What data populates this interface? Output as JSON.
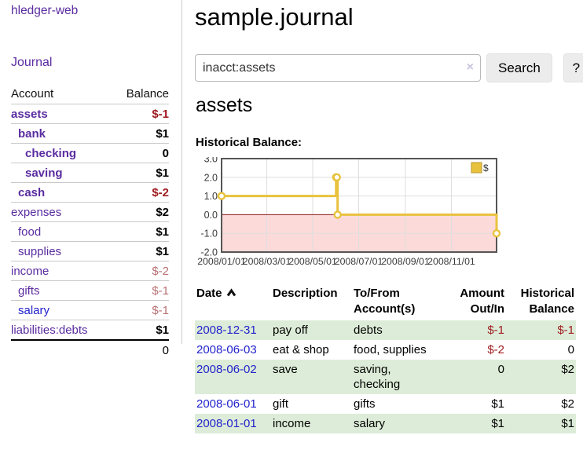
{
  "app": {
    "title": "hledger-web"
  },
  "nav": {
    "journal_label": "Journal"
  },
  "sidebar": {
    "headers": {
      "account": "Account",
      "balance": "Balance"
    },
    "accounts": [
      {
        "name": "assets",
        "depth": 1,
        "bold": true,
        "balance": "$-1",
        "balance_style": "neg-strong"
      },
      {
        "name": "bank",
        "depth": 2,
        "bold": true,
        "balance": "$1",
        "balance_style": "pos"
      },
      {
        "name": "checking",
        "depth": 3,
        "bold": true,
        "balance": "0",
        "balance_style": "pos"
      },
      {
        "name": "saving",
        "depth": 3,
        "bold": true,
        "balance": "$1",
        "balance_style": "pos"
      },
      {
        "name": "cash",
        "depth": 2,
        "bold": true,
        "balance": "$-2",
        "balance_style": "neg-strong"
      },
      {
        "name": "expenses",
        "depth": 1,
        "bold": false,
        "balance": "$2",
        "balance_style": "pos"
      },
      {
        "name": "food",
        "depth": 2,
        "bold": false,
        "balance": "$1",
        "balance_style": "pos"
      },
      {
        "name": "supplies",
        "depth": 2,
        "bold": false,
        "balance": "$1",
        "balance_style": "pos"
      },
      {
        "name": "income",
        "depth": 1,
        "bold": false,
        "balance": "$-2",
        "balance_style": "neg-soft"
      },
      {
        "name": "gifts",
        "depth": 2,
        "bold": false,
        "balance": "$-1",
        "balance_style": "neg-soft"
      },
      {
        "name": "salary",
        "depth": 2,
        "bold": false,
        "link_color": "blue",
        "balance": "$-1",
        "balance_style": "neg-soft"
      },
      {
        "name": "liabilities:debts",
        "depth": 1,
        "bold": false,
        "balance": "$1",
        "balance_style": "pos"
      }
    ],
    "total": "0"
  },
  "header": {
    "title": "sample.journal"
  },
  "search": {
    "value": "inacct:assets",
    "clear_icon": "×",
    "button_label": "Search",
    "help_label": "?"
  },
  "account_page": {
    "title": "assets",
    "chart_label": "Historical Balance:"
  },
  "chart_data": {
    "type": "line",
    "step": true,
    "title": "Historical Balance:",
    "legend": "$",
    "legend_position": "top-right",
    "series": [
      {
        "name": "$",
        "color": "#e8c23d",
        "points": [
          [
            "2008-01-01",
            1
          ],
          [
            "2008-06-01",
            2
          ],
          [
            "2008-06-02",
            2
          ],
          [
            "2008-06-03",
            0
          ],
          [
            "2008-12-31",
            -1
          ]
        ]
      }
    ],
    "x_range": [
      "2008-01-01",
      "2008-12-31"
    ],
    "ylim": [
      -2,
      3
    ],
    "yticks": [
      3.0,
      2.0,
      1.0,
      0.0,
      -1.0,
      -2.0
    ],
    "xticks": [
      "2008/01/01",
      "2008/03/01",
      "2008/05/01",
      "2008/07/01",
      "2008/09/01",
      "2008/11/01"
    ],
    "grid": true,
    "negative_region_color": "#fcdada",
    "zero_line_color": "#8c1a17"
  },
  "register": {
    "col_date": "Date",
    "sort_icon": "chevron-up",
    "col_description": "Description",
    "col_accounts": "To/From Account(s)",
    "col_amount": "Amount Out/In",
    "col_balance": "Historical Balance",
    "rows": [
      {
        "date": "2008-12-31",
        "description": "pay off",
        "accounts": "debts",
        "amount": "$-1",
        "amount_neg": true,
        "balance": "$-1",
        "balance_neg": true
      },
      {
        "date": "2008-06-03",
        "description": "eat & shop",
        "accounts": "food, supplies",
        "amount": "$-2",
        "amount_neg": true,
        "balance": "0",
        "balance_neg": false
      },
      {
        "date": "2008-06-02",
        "description": "save",
        "accounts": "saving, checking",
        "amount": "0",
        "amount_neg": false,
        "balance": "$2",
        "balance_neg": false
      },
      {
        "date": "2008-06-01",
        "description": "gift",
        "accounts": "gifts",
        "amount": "$1",
        "amount_neg": false,
        "balance": "$2",
        "balance_neg": false
      },
      {
        "date": "2008-01-01",
        "description": "income",
        "accounts": "salary",
        "amount": "$1",
        "amount_neg": false,
        "balance": "$1",
        "balance_neg": false
      }
    ]
  }
}
